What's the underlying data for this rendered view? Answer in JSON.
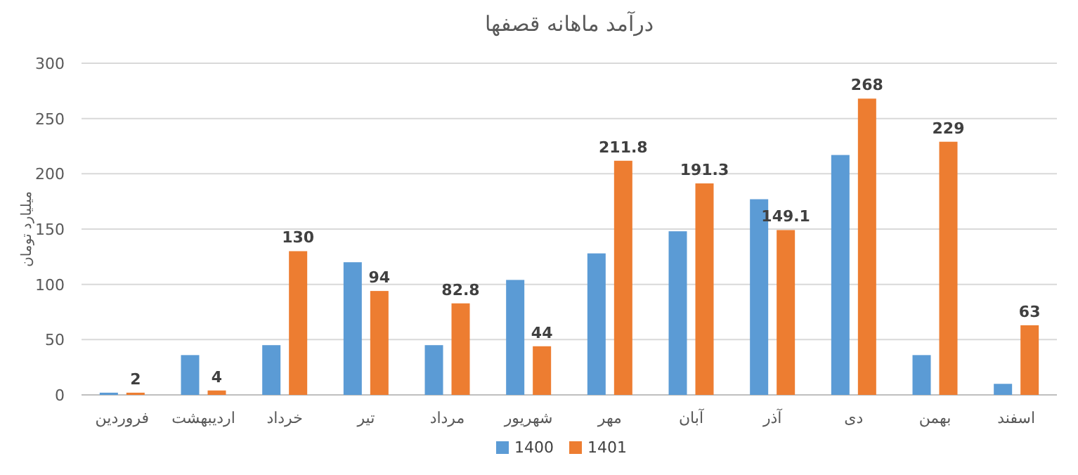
{
  "chart_data": {
    "type": "bar",
    "title": "درآمد ماهانه قصفها",
    "ylabel": "میلیارد تومان",
    "categories": [
      "فروردین",
      "اردیبهشت",
      "خرداد",
      "تیر",
      "مرداد",
      "شهریور",
      "مهر",
      "آبان",
      "آذر",
      "دی",
      "بهمن",
      "اسفند"
    ],
    "series": [
      {
        "name": "1400",
        "color": "#5b9bd5",
        "values": [
          2,
          36,
          45,
          120,
          45,
          104,
          128,
          148,
          177,
          217,
          36,
          10
        ]
      },
      {
        "name": "1401",
        "color": "#ed7d31",
        "values": [
          2,
          4,
          130,
          94,
          82.8,
          44,
          211.8,
          191.3,
          149.1,
          268,
          229,
          63
        ],
        "value_labels": [
          "2",
          "4",
          "130",
          "94",
          "82.8",
          "44",
          "211.8",
          "191.3",
          "149.1",
          "268",
          "229",
          "63"
        ]
      }
    ],
    "ylim": [
      0,
      300
    ],
    "yticks": [
      0,
      50,
      100,
      150,
      200,
      250,
      300
    ],
    "grid": "y",
    "legend": "bottom"
  }
}
